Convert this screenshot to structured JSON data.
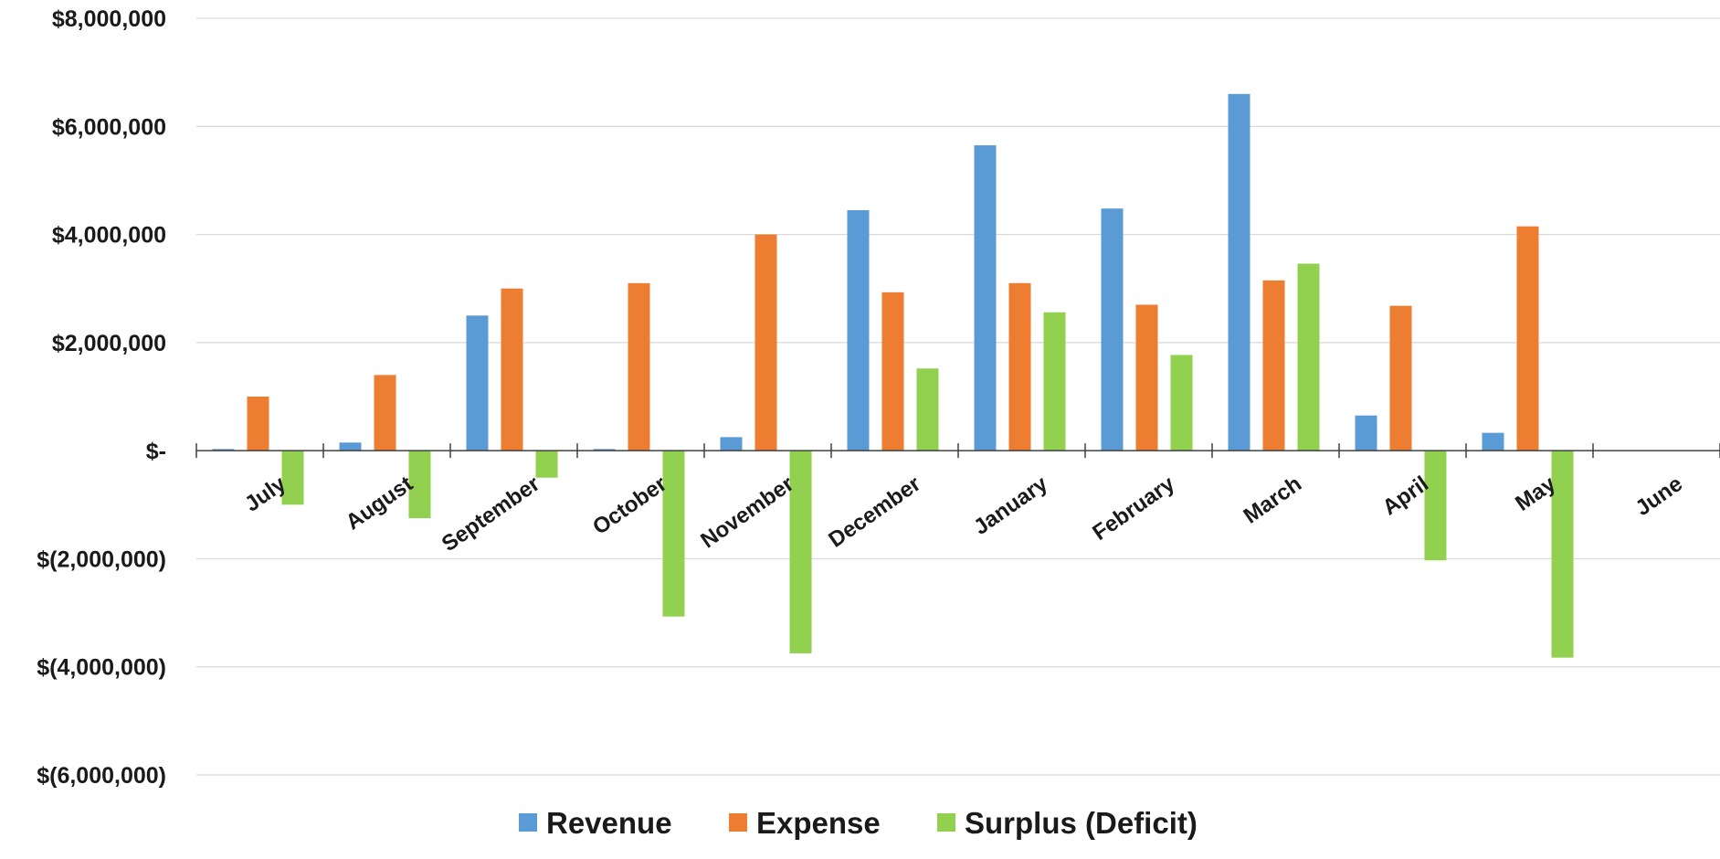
{
  "chart_data": {
    "type": "bar",
    "categories": [
      "July",
      "August",
      "September",
      "October",
      "November",
      "December",
      "January",
      "February",
      "March",
      "April",
      "May",
      "June"
    ],
    "series": [
      {
        "name": "Revenue",
        "color": "#5b9bd5",
        "values": [
          30000,
          150000,
          2500000,
          30000,
          250000,
          4450000,
          5650000,
          4480000,
          6600000,
          650000,
          330000,
          0
        ]
      },
      {
        "name": "Expense",
        "color": "#ed7d31",
        "values": [
          1000000,
          1400000,
          3000000,
          3100000,
          4000000,
          2930000,
          3100000,
          2700000,
          3150000,
          2680000,
          4150000,
          0
        ]
      },
      {
        "name": "Surplus (Deficit)",
        "color": "#92d050",
        "values": [
          -1000000,
          -1250000,
          -500000,
          -3070000,
          -3750000,
          1520000,
          2560000,
          1770000,
          3460000,
          -2030000,
          -3830000,
          0
        ]
      }
    ],
    "ylim": [
      -6000000,
      8000000
    ],
    "y_ticks": [
      {
        "value": 8000000,
        "label": "$8,000,000"
      },
      {
        "value": 6000000,
        "label": "$6,000,000"
      },
      {
        "value": 4000000,
        "label": "$4,000,000"
      },
      {
        "value": 2000000,
        "label": "$2,000,000"
      },
      {
        "value": 0,
        "label": "$-"
      },
      {
        "value": -2000000,
        "label": "$(2,000,000)"
      },
      {
        "value": -4000000,
        "label": "$(4,000,000)"
      },
      {
        "value": -6000000,
        "label": "$(6,000,000)"
      }
    ],
    "grid": true,
    "legend_position": "bottom",
    "title": "",
    "xlabel": "",
    "ylabel": ""
  }
}
